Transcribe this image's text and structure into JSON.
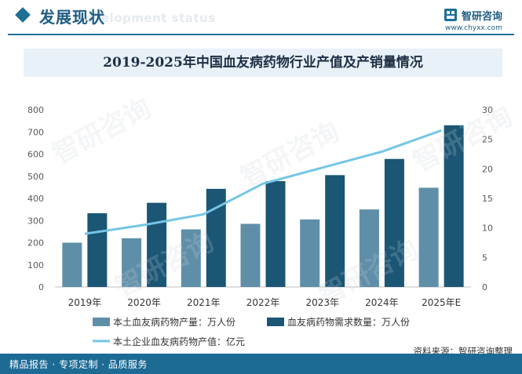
{
  "header": {
    "section_title": "发展现状",
    "section_subtitle": "Development status",
    "logo_name": "智研咨询",
    "logo_url": "www.chyxx.com"
  },
  "chart_data": {
    "type": "bar",
    "title": "2019-2025年中国血友病药物行业产值及产销量情况",
    "categories": [
      "2019年",
      "2020年",
      "2021年",
      "2022年",
      "2023年",
      "2024年",
      "2025年E"
    ],
    "series": [
      {
        "name": "本土血友病药物产量：万人份",
        "type": "bar",
        "axis": "left",
        "color": "#5f8fa8",
        "values": [
          200,
          220,
          260,
          285,
          305,
          350,
          448
        ]
      },
      {
        "name": "血友病药物需求数量：万人份",
        "type": "bar",
        "axis": "left",
        "color": "#1b5674",
        "values": [
          333,
          380,
          443,
          478,
          505,
          578,
          730
        ]
      },
      {
        "name": "本土企业血友病药物产值：亿元",
        "type": "line",
        "axis": "right",
        "color": "#74c6e6",
        "values": [
          9.0,
          10.5,
          12.3,
          17.5,
          20.2,
          22.9,
          26.5
        ]
      }
    ],
    "y_left": {
      "min": 0,
      "max": 800,
      "ticks": [
        0,
        100,
        200,
        300,
        400,
        500,
        600,
        700,
        800
      ]
    },
    "y_right": {
      "min": 0,
      "max": 30,
      "ticks": [
        0,
        5,
        10,
        15,
        20,
        25,
        30
      ]
    },
    "legend_placement": "bottom",
    "grid": false
  },
  "footer": {
    "left_text": "精品报告 · 专项定制 · 品质服务",
    "source": "资料来源：智研咨询整理"
  },
  "watermark_text": "智研咨询"
}
